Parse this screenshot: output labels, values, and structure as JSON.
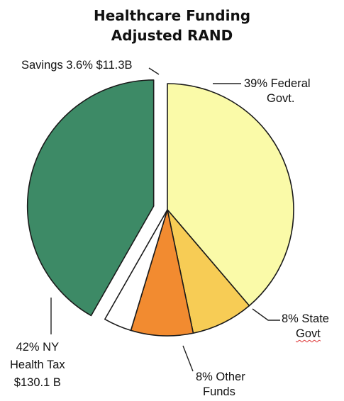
{
  "chart_data": {
    "type": "pie",
    "title": "Healthcare Funding",
    "subtitle": "Adjusted RAND",
    "slices": [
      {
        "key": "federal",
        "label_lines": [
          "39% Federal",
          "Govt."
        ],
        "percent": 39,
        "color": "#fafaa8"
      },
      {
        "key": "state",
        "label_lines": [
          "8% State",
          "Govt"
        ],
        "percent": 8,
        "color": "#f7cc55"
      },
      {
        "key": "other",
        "label_lines": [
          "8% Other",
          "Funds"
        ],
        "percent": 8,
        "color": "#f28b30"
      },
      {
        "key": "savings",
        "label_lines": [
          "Savings 3.6% $11.3B"
        ],
        "percent": 3.6,
        "color": "#ffffff"
      },
      {
        "key": "ny_tax",
        "label_lines": [
          "42% NY",
          "Health Tax",
          "$130.1 B"
        ],
        "percent": 42,
        "color": "#3d8a66"
      }
    ]
  }
}
